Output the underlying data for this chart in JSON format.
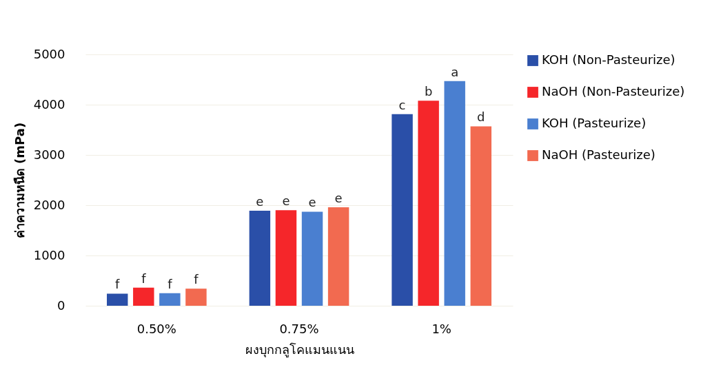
{
  "chart_data": {
    "type": "bar",
    "xlabel": "ผงบุกกลูโคแมนแนน",
    "ylabel": "ค่าความหนืด (mPa)",
    "categories": [
      "0.50%",
      "0.75%",
      "1%"
    ],
    "series": [
      {
        "name": "KOH (Non-Pasteurize)",
        "color": "#2a4fa8",
        "values": [
          240,
          1890,
          3810
        ]
      },
      {
        "name": "NaOH (Non-Pasteurize)",
        "color": "#f5262a",
        "values": [
          360,
          1900,
          4080
        ]
      },
      {
        "name": "KOH (Pasteurize)",
        "color": "#4a7fd0",
        "values": [
          250,
          1870,
          4470
        ]
      },
      {
        "name": "NaOH (Pasteurize)",
        "color": "#f26a50",
        "values": [
          340,
          1960,
          3570
        ]
      }
    ],
    "ylim": [
      0,
      5000
    ],
    "yticks": [
      0,
      1000,
      2000,
      3000,
      4000,
      5000
    ],
    "grid": "y",
    "legend": "right",
    "annotations": [
      "f",
      "f",
      "f",
      "f",
      "e",
      "e",
      "e",
      "e",
      "c",
      "b",
      "a",
      "d"
    ]
  }
}
